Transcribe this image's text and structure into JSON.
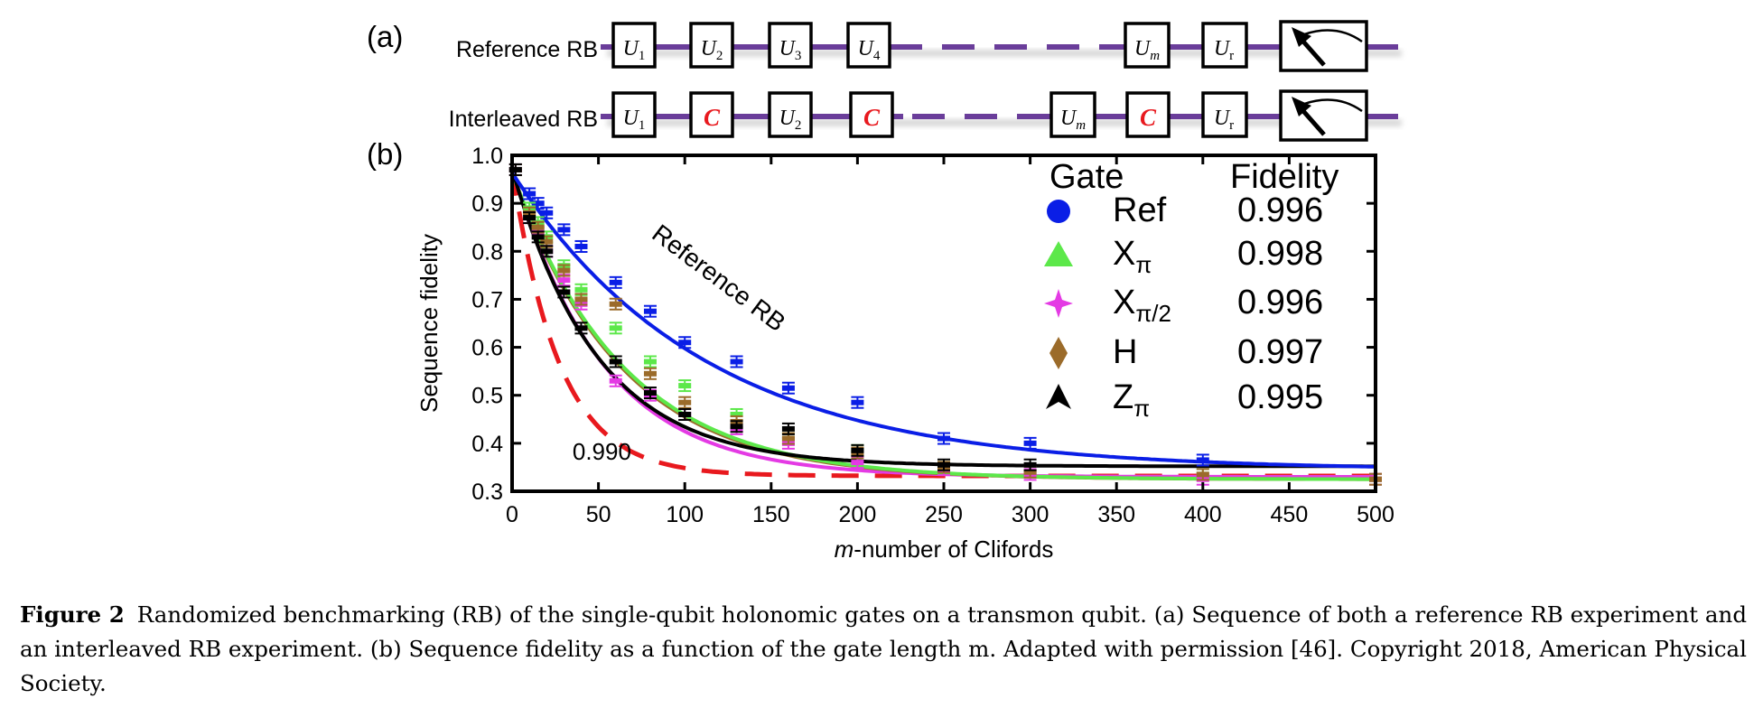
{
  "panel_a": {
    "label": "(a)",
    "rows": [
      {
        "label": "Reference RB",
        "gates": [
          {
            "base": "U",
            "sub": "1"
          },
          {
            "base": "U",
            "sub": "2"
          },
          {
            "base": "U",
            "sub": "3"
          },
          {
            "base": "U",
            "sub": "4"
          },
          {
            "base": "U",
            "sub": "m"
          },
          {
            "base": "U",
            "sub": "r"
          }
        ]
      },
      {
        "label": "Interleaved RB",
        "gates": [
          {
            "base": "U",
            "sub": "1"
          },
          {
            "base": "C",
            "sub": ""
          },
          {
            "base": "U",
            "sub": "2"
          },
          {
            "base": "C",
            "sub": ""
          },
          {
            "base": "U",
            "sub": "m"
          },
          {
            "base": "C",
            "sub": ""
          },
          {
            "base": "U",
            "sub": "r"
          }
        ]
      }
    ]
  },
  "panel_b": {
    "label": "(b)"
  },
  "colors": {
    "wire": "#6a3d9a",
    "c_gate": "#e8191e"
  },
  "chart_data": {
    "type": "scatter",
    "xlabel_italic": "m",
    "xlabel_rest": "-number of Clifords",
    "ylabel": "Sequence fidelity",
    "xlim": [
      0,
      500
    ],
    "ylim": [
      0.3,
      1.0
    ],
    "xticks": [
      0,
      50,
      100,
      150,
      200,
      250,
      300,
      350,
      400,
      450,
      500
    ],
    "yticks": [
      "0.3",
      "0.4",
      "0.5",
      "0.6",
      "0.7",
      "0.8",
      "0.9",
      "1.0"
    ],
    "legend": {
      "header_gate": "Gate",
      "header_fidelity": "Fidelity",
      "placement": "top-right"
    },
    "annotations": [
      {
        "text": "Reference RB",
        "x": 80,
        "y": 0.83,
        "angle": 37
      },
      {
        "text": "0.990",
        "x": 52,
        "y": 0.385
      }
    ],
    "series": [
      {
        "name": "Ref",
        "sub": "",
        "fidelity": "0.996",
        "marker": "circle",
        "color": "#0a1ee6",
        "fit": {
          "A": 0.62,
          "p": 0.9911,
          "B": 0.344
        },
        "x": [
          2,
          10,
          15,
          20,
          30,
          40,
          60,
          80,
          100,
          130,
          160,
          200,
          250,
          300,
          400
        ],
        "y": [
          0.97,
          0.92,
          0.9,
          0.88,
          0.845,
          0.81,
          0.735,
          0.675,
          0.61,
          0.57,
          0.515,
          0.485,
          0.41,
          0.4,
          0.365
        ]
      },
      {
        "name": "X",
        "sub": "π",
        "fidelity": "0.998",
        "marker": "triangle",
        "color": "#5ce84a",
        "fit": {
          "A": 0.64,
          "p": 0.9845,
          "B": 0.325
        },
        "x": [
          2,
          10,
          15,
          20,
          30,
          40,
          60,
          80,
          100,
          130,
          160,
          200,
          250,
          300,
          400,
          500
        ],
        "y": [
          0.97,
          0.89,
          0.86,
          0.83,
          0.77,
          0.72,
          0.64,
          0.57,
          0.52,
          0.46,
          0.41,
          0.385,
          0.35,
          0.34,
          0.335,
          0.325
        ]
      },
      {
        "name": "X",
        "sub": "π/2",
        "fidelity": "0.996",
        "marker": "star",
        "color": "#e43ae4",
        "fit": {
          "A": 0.645,
          "p": 0.981,
          "B": 0.33
        },
        "x": [
          2,
          10,
          15,
          20,
          30,
          40,
          60,
          80,
          100,
          130,
          160,
          200,
          250,
          300,
          400,
          500
        ],
        "y": [
          0.97,
          0.87,
          0.84,
          0.8,
          0.74,
          0.69,
          0.53,
          0.5,
          0.46,
          0.43,
          0.4,
          0.36,
          0.345,
          0.335,
          0.325,
          0.325
        ]
      },
      {
        "name": "H",
        "sub": "",
        "fidelity": "0.997",
        "marker": "diamond",
        "color": "#9b6b2a",
        "fit": {
          "A": 0.64,
          "p": 0.9842,
          "B": 0.325
        },
        "x": [
          2,
          10,
          15,
          20,
          30,
          40,
          60,
          80,
          100,
          130,
          160,
          200,
          250,
          300,
          400,
          500
        ],
        "y": [
          0.97,
          0.88,
          0.85,
          0.82,
          0.76,
          0.7,
          0.69,
          0.545,
          0.485,
          0.445,
          0.41,
          0.38,
          0.35,
          0.34,
          0.335,
          0.325
        ]
      },
      {
        "name": "Z",
        "sub": "π",
        "fidelity": "0.995",
        "marker": "arrowhead",
        "color": "#000000",
        "fit": {
          "A": 0.62,
          "p": 0.98,
          "B": 0.352
        },
        "x": [
          2,
          10,
          15,
          20,
          30,
          40,
          60,
          80,
          100,
          130,
          160,
          200,
          250,
          300
        ],
        "y": [
          0.97,
          0.87,
          0.83,
          0.8,
          0.715,
          0.64,
          0.57,
          0.505,
          0.46,
          0.435,
          0.43,
          0.385,
          0.355,
          0.355
        ]
      }
    ],
    "reference_curve": {
      "label": "0.990",
      "color": "#e8191e",
      "style": "dashed",
      "fit": {
        "A": 0.64,
        "p": 0.964,
        "B": 0.332
      }
    }
  },
  "caption": {
    "label": "Figure 2",
    "text": "Randomized benchmarking (RB) of the single-qubit holonomic gates on a transmon qubit. (a) Sequence of both a reference RB experiment and an interleaved RB experiment. (b) Sequence fidelity as a function of the gate length m. Adapted with permission [46]. Copyright 2018, American Physical Society."
  }
}
